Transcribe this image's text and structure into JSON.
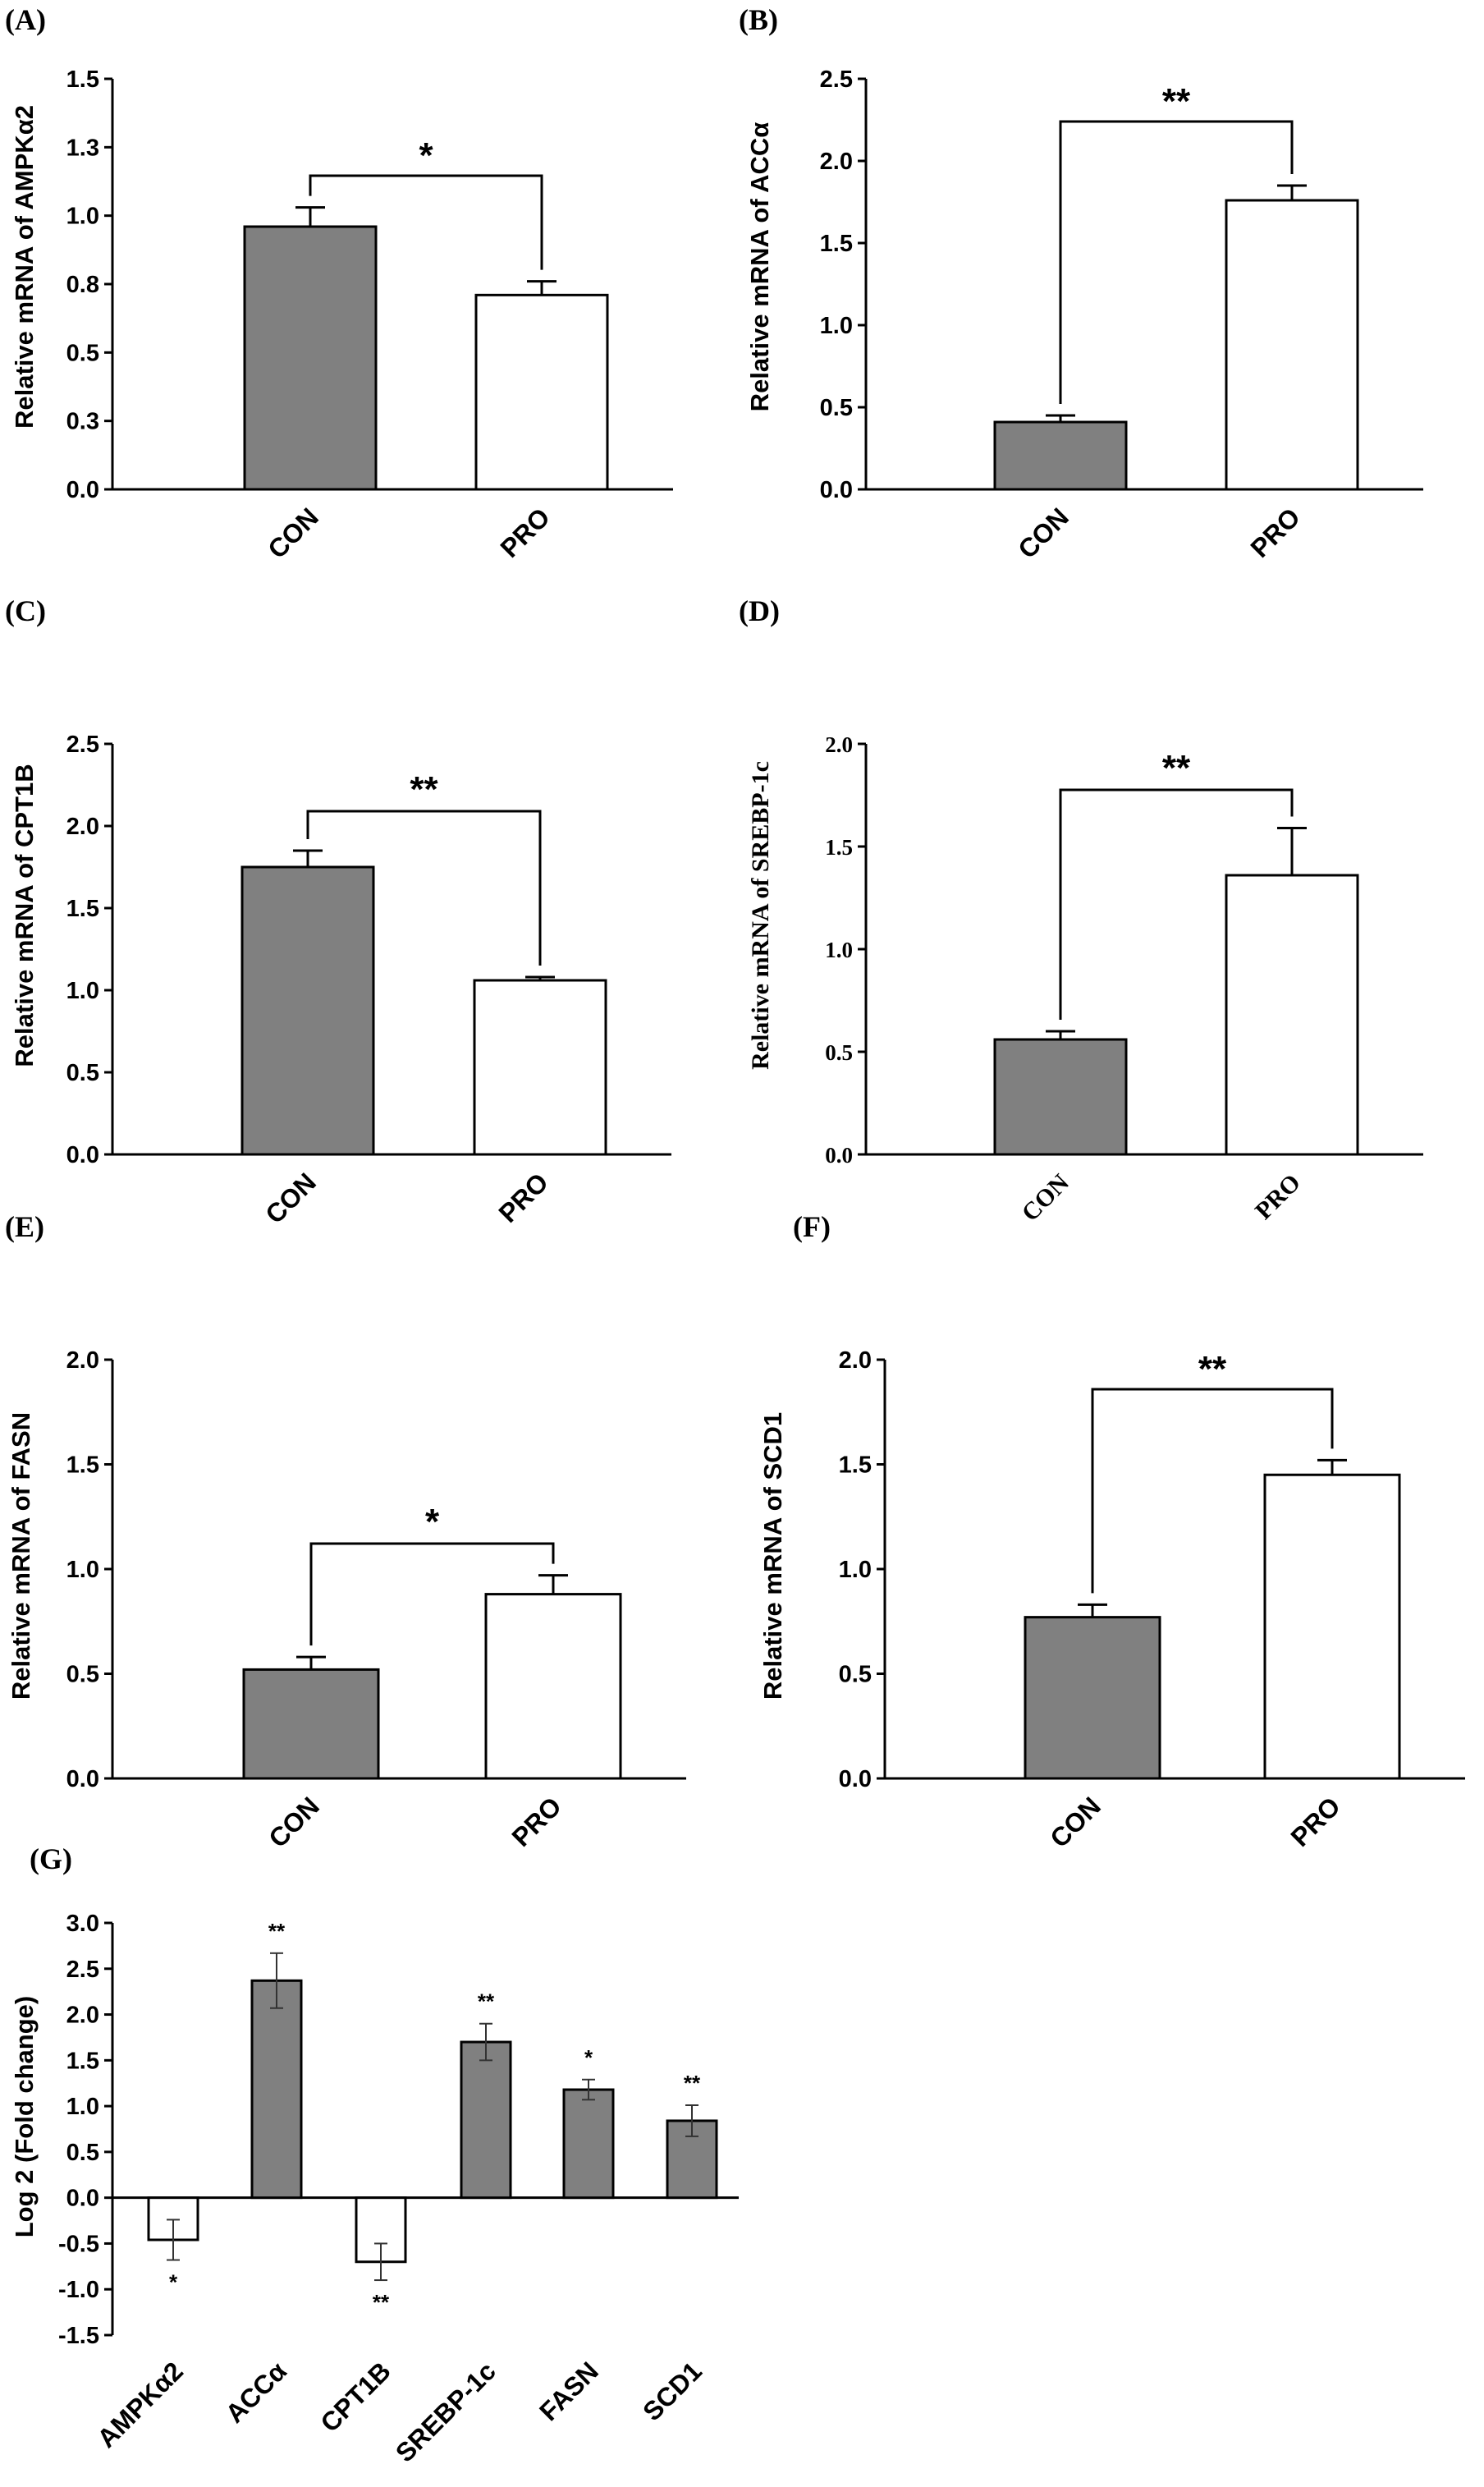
{
  "colors": {
    "con_fill": "#808080",
    "pro_fill": "#ffffff",
    "up_fill": "#808080",
    "down_fill": "#ffffff",
    "stroke": "#000000"
  },
  "chart_data": [
    {
      "panel": "(A)",
      "type": "bar",
      "categories": [
        "CON",
        "PRO"
      ],
      "values": [
        0.96,
        0.71
      ],
      "errors": [
        0.07,
        0.05
      ],
      "ylabel": "Relative mRNA of AMPKα2",
      "ylim": [
        0,
        1.5
      ],
      "yticks": [
        "0.0",
        "0.3",
        "0.5",
        "0.8",
        "1.0",
        "1.3",
        "1.5"
      ],
      "significance": "*"
    },
    {
      "panel": "(B)",
      "type": "bar",
      "categories": [
        "CON",
        "PRO"
      ],
      "values": [
        0.41,
        1.76
      ],
      "errors": [
        0.04,
        0.09
      ],
      "ylabel": "Relative mRNA of ACCα",
      "ylim": [
        0,
        2.5
      ],
      "yticks": [
        "0.0",
        "0.5",
        "1.0",
        "1.5",
        "2.0",
        "2.5"
      ],
      "significance": "**"
    },
    {
      "panel": "(C)",
      "type": "bar",
      "categories": [
        "CON",
        "PRO"
      ],
      "values": [
        1.75,
        1.06
      ],
      "errors": [
        0.1,
        0.02
      ],
      "ylabel": "Relative mRNA of CPT1B",
      "ylim": [
        0,
        2.5
      ],
      "yticks": [
        "0.0",
        "0.5",
        "1.0",
        "1.5",
        "2.0",
        "2.5"
      ],
      "significance": "**"
    },
    {
      "panel": "(D)",
      "type": "bar",
      "categories": [
        "CON",
        "PRO"
      ],
      "values": [
        0.56,
        1.36
      ],
      "errors": [
        0.04,
        0.23
      ],
      "ylabel": "Relative mRNA of SREBP-1c",
      "ylim": [
        0,
        2.0
      ],
      "yticks": [
        "0.0",
        "0.5",
        "1.0",
        "1.5",
        "2.0"
      ],
      "significance": "**"
    },
    {
      "panel": "(E)",
      "type": "bar",
      "categories": [
        "CON",
        "PRO"
      ],
      "values": [
        0.52,
        0.88
      ],
      "errors": [
        0.06,
        0.09
      ],
      "ylabel": "Relative mRNA of FASN",
      "ylim": [
        0,
        2.0
      ],
      "yticks": [
        "0.0",
        "0.5",
        "1.0",
        "1.5",
        "2.0"
      ],
      "significance": "*"
    },
    {
      "panel": "(F)",
      "type": "bar",
      "categories": [
        "CON",
        "PRO"
      ],
      "values": [
        0.77,
        1.45
      ],
      "errors": [
        0.06,
        0.07
      ],
      "ylabel": "Relative mRNA of SCD1",
      "ylim": [
        0,
        2.0
      ],
      "yticks": [
        "0.0",
        "0.5",
        "1.0",
        "1.5",
        "2.0"
      ],
      "significance": "**"
    },
    {
      "panel": "(G)",
      "type": "bar",
      "categories": [
        "AMPKα2",
        "ACCα",
        "CPT1B",
        "SREBP-1c",
        "FASN",
        "SCD1"
      ],
      "values": [
        -0.46,
        2.37,
        -0.7,
        1.7,
        1.18,
        0.84
      ],
      "errors": [
        0.22,
        0.3,
        0.2,
        0.2,
        0.11,
        0.17
      ],
      "significance": [
        "*",
        "**",
        "**",
        "**",
        "*",
        "**"
      ],
      "ylabel": "Log 2 (Fold change)",
      "ylim": [
        -1.5,
        3.0
      ],
      "yticks": [
        "-1.5",
        "-1.0",
        "-0.5",
        "0.0",
        "0.5",
        "1.0",
        "1.5",
        "2.0",
        "2.5",
        "3.0"
      ]
    }
  ]
}
